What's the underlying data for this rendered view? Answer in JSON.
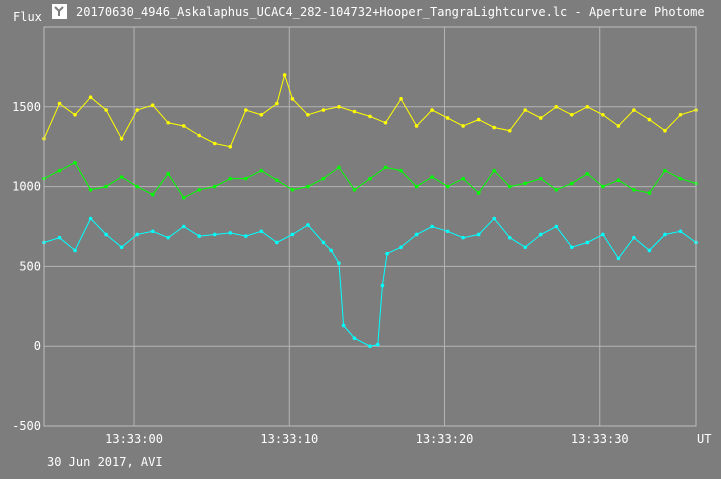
{
  "window": {
    "title": "20170630_4946_Askalaphus_UCAC4_282-104732+Hooper_TangraLightcurve.lc - Aperture Photome",
    "icon": "tangra-app-icon"
  },
  "footer": {
    "caption": "30 Jun 2017, AVI"
  },
  "colors": {
    "background": "#7d7d7d",
    "grid": "#b4b4b4",
    "text": "#ffffff"
  },
  "chart_data": {
    "type": "line",
    "ylabel": "Flux",
    "xlabel": "UT",
    "ylim": [
      -500,
      2000
    ],
    "yticks": [
      {
        "value": -500,
        "label": "-500"
      },
      {
        "value": 0,
        "label": "0"
      },
      {
        "value": 500,
        "label": "500"
      },
      {
        "value": 1000,
        "label": "1000"
      },
      {
        "value": 1500,
        "label": "1500"
      }
    ],
    "xlim": [
      -5.8,
      36.2
    ],
    "xticks": [
      {
        "value": 0,
        "label": "13:33:00"
      },
      {
        "value": 10,
        "label": "13:33:10"
      },
      {
        "value": 20,
        "label": "13:33:20"
      },
      {
        "value": 30,
        "label": "13:33:30"
      }
    ],
    "grid": true,
    "series": [
      {
        "color": "#ffff00",
        "x": [
          -5.8,
          -4.8,
          -3.8,
          -2.8,
          -1.8,
          -0.8,
          0.2,
          1.2,
          2.2,
          3.2,
          4.2,
          5.2,
          6.2,
          7.2,
          8.2,
          9.2,
          9.7,
          10.2,
          11.2,
          12.2,
          13.2,
          14.2,
          15.2,
          16.2,
          17.2,
          18.2,
          19.2,
          20.2,
          21.2,
          22.2,
          23.2,
          24.2,
          25.2,
          26.2,
          27.2,
          28.2,
          29.2,
          30.2,
          31.2,
          32.2,
          33.2,
          34.2,
          35.2,
          36.2
        ],
        "y": [
          1300,
          1520,
          1450,
          1560,
          1480,
          1300,
          1480,
          1510,
          1400,
          1380,
          1320,
          1270,
          1250,
          1480,
          1450,
          1520,
          1700,
          1550,
          1450,
          1480,
          1500,
          1470,
          1440,
          1400,
          1550,
          1380,
          1480,
          1430,
          1380,
          1420,
          1370,
          1350,
          1480,
          1430,
          1500,
          1450,
          1500,
          1450,
          1380,
          1480,
          1420,
          1350,
          1450,
          1480
        ]
      },
      {
        "color": "#00ff00",
        "x": [
          -5.8,
          -4.8,
          -3.8,
          -2.8,
          -1.8,
          -0.8,
          0.2,
          1.2,
          2.2,
          3.2,
          4.2,
          5.2,
          6.2,
          7.2,
          8.2,
          9.2,
          10.2,
          11.2,
          12.2,
          13.2,
          14.2,
          15.2,
          16.2,
          17.2,
          18.2,
          19.2,
          20.2,
          21.2,
          22.2,
          23.2,
          24.2,
          25.2,
          26.2,
          27.2,
          28.2,
          29.2,
          30.2,
          31.2,
          32.2,
          33.2,
          34.2,
          35.2,
          36.2
        ],
        "y": [
          1050,
          1100,
          1150,
          980,
          1000,
          1060,
          1000,
          950,
          1080,
          930,
          980,
          1000,
          1050,
          1050,
          1100,
          1040,
          980,
          1000,
          1050,
          1120,
          980,
          1050,
          1120,
          1100,
          1000,
          1060,
          1000,
          1050,
          960,
          1100,
          1000,
          1020,
          1050,
          980,
          1020,
          1080,
          1000,
          1040,
          980,
          960,
          1100,
          1050,
          1020
        ]
      },
      {
        "color": "#00ffff",
        "x": [
          -5.8,
          -4.8,
          -3.8,
          -2.8,
          -1.8,
          -0.8,
          0.2,
          1.2,
          2.2,
          3.2,
          4.2,
          5.2,
          6.2,
          7.2,
          8.2,
          9.2,
          10.2,
          11.2,
          12.2,
          12.7,
          13.2,
          13.5,
          14.2,
          15.2,
          15.7,
          16.0,
          16.3,
          17.2,
          18.2,
          19.2,
          20.2,
          21.2,
          22.2,
          23.2,
          24.2,
          25.2,
          26.2,
          27.2,
          28.2,
          29.2,
          30.2,
          31.2,
          32.2,
          33.2,
          34.2,
          35.2,
          36.2
        ],
        "y": [
          650,
          680,
          600,
          800,
          700,
          620,
          700,
          720,
          680,
          750,
          690,
          700,
          710,
          690,
          720,
          650,
          700,
          760,
          650,
          600,
          520,
          130,
          50,
          0,
          10,
          380,
          580,
          620,
          700,
          750,
          720,
          680,
          700,
          800,
          680,
          620,
          700,
          750,
          620,
          650,
          700,
          550,
          680,
          600,
          700,
          720,
          650
        ]
      }
    ]
  }
}
